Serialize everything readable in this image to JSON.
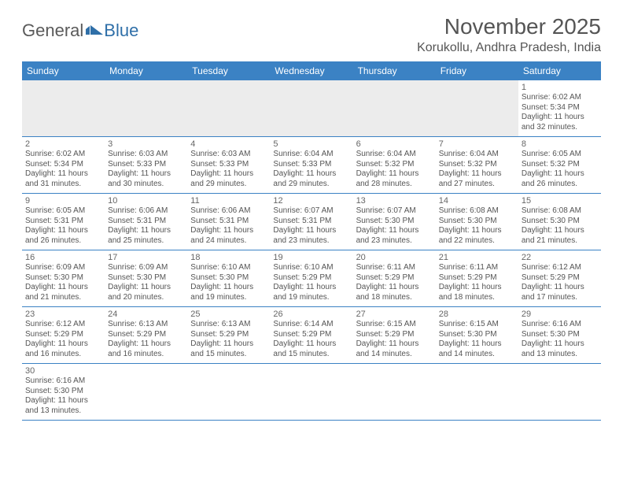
{
  "brand": {
    "part1": "General",
    "part2": "Blue"
  },
  "title": "November 2025",
  "location": "Korukollu, Andhra Pradesh, India",
  "day_labels": [
    "Sunday",
    "Monday",
    "Tuesday",
    "Wednesday",
    "Thursday",
    "Friday",
    "Saturday"
  ],
  "colors": {
    "header_bg": "#3b82c4",
    "header_text": "#ffffff",
    "border": "#3b82c4",
    "empty_bg": "#ececec",
    "text": "#555555"
  },
  "weeks": [
    [
      null,
      null,
      null,
      null,
      null,
      null,
      {
        "n": "1",
        "sr": "6:02 AM",
        "ss": "5:34 PM",
        "dl": "11 hours and 32 minutes."
      }
    ],
    [
      {
        "n": "2",
        "sr": "6:02 AM",
        "ss": "5:34 PM",
        "dl": "11 hours and 31 minutes."
      },
      {
        "n": "3",
        "sr": "6:03 AM",
        "ss": "5:33 PM",
        "dl": "11 hours and 30 minutes."
      },
      {
        "n": "4",
        "sr": "6:03 AM",
        "ss": "5:33 PM",
        "dl": "11 hours and 29 minutes."
      },
      {
        "n": "5",
        "sr": "6:04 AM",
        "ss": "5:33 PM",
        "dl": "11 hours and 29 minutes."
      },
      {
        "n": "6",
        "sr": "6:04 AM",
        "ss": "5:32 PM",
        "dl": "11 hours and 28 minutes."
      },
      {
        "n": "7",
        "sr": "6:04 AM",
        "ss": "5:32 PM",
        "dl": "11 hours and 27 minutes."
      },
      {
        "n": "8",
        "sr": "6:05 AM",
        "ss": "5:32 PM",
        "dl": "11 hours and 26 minutes."
      }
    ],
    [
      {
        "n": "9",
        "sr": "6:05 AM",
        "ss": "5:31 PM",
        "dl": "11 hours and 26 minutes."
      },
      {
        "n": "10",
        "sr": "6:06 AM",
        "ss": "5:31 PM",
        "dl": "11 hours and 25 minutes."
      },
      {
        "n": "11",
        "sr": "6:06 AM",
        "ss": "5:31 PM",
        "dl": "11 hours and 24 minutes."
      },
      {
        "n": "12",
        "sr": "6:07 AM",
        "ss": "5:31 PM",
        "dl": "11 hours and 23 minutes."
      },
      {
        "n": "13",
        "sr": "6:07 AM",
        "ss": "5:30 PM",
        "dl": "11 hours and 23 minutes."
      },
      {
        "n": "14",
        "sr": "6:08 AM",
        "ss": "5:30 PM",
        "dl": "11 hours and 22 minutes."
      },
      {
        "n": "15",
        "sr": "6:08 AM",
        "ss": "5:30 PM",
        "dl": "11 hours and 21 minutes."
      }
    ],
    [
      {
        "n": "16",
        "sr": "6:09 AM",
        "ss": "5:30 PM",
        "dl": "11 hours and 21 minutes."
      },
      {
        "n": "17",
        "sr": "6:09 AM",
        "ss": "5:30 PM",
        "dl": "11 hours and 20 minutes."
      },
      {
        "n": "18",
        "sr": "6:10 AM",
        "ss": "5:30 PM",
        "dl": "11 hours and 19 minutes."
      },
      {
        "n": "19",
        "sr": "6:10 AM",
        "ss": "5:29 PM",
        "dl": "11 hours and 19 minutes."
      },
      {
        "n": "20",
        "sr": "6:11 AM",
        "ss": "5:29 PM",
        "dl": "11 hours and 18 minutes."
      },
      {
        "n": "21",
        "sr": "6:11 AM",
        "ss": "5:29 PM",
        "dl": "11 hours and 18 minutes."
      },
      {
        "n": "22",
        "sr": "6:12 AM",
        "ss": "5:29 PM",
        "dl": "11 hours and 17 minutes."
      }
    ],
    [
      {
        "n": "23",
        "sr": "6:12 AM",
        "ss": "5:29 PM",
        "dl": "11 hours and 16 minutes."
      },
      {
        "n": "24",
        "sr": "6:13 AM",
        "ss": "5:29 PM",
        "dl": "11 hours and 16 minutes."
      },
      {
        "n": "25",
        "sr": "6:13 AM",
        "ss": "5:29 PM",
        "dl": "11 hours and 15 minutes."
      },
      {
        "n": "26",
        "sr": "6:14 AM",
        "ss": "5:29 PM",
        "dl": "11 hours and 15 minutes."
      },
      {
        "n": "27",
        "sr": "6:15 AM",
        "ss": "5:29 PM",
        "dl": "11 hours and 14 minutes."
      },
      {
        "n": "28",
        "sr": "6:15 AM",
        "ss": "5:30 PM",
        "dl": "11 hours and 14 minutes."
      },
      {
        "n": "29",
        "sr": "6:16 AM",
        "ss": "5:30 PM",
        "dl": "11 hours and 13 minutes."
      }
    ],
    [
      {
        "n": "30",
        "sr": "6:16 AM",
        "ss": "5:30 PM",
        "dl": "11 hours and 13 minutes."
      },
      null,
      null,
      null,
      null,
      null,
      null
    ]
  ],
  "labels": {
    "sunrise": "Sunrise: ",
    "sunset": "Sunset: ",
    "daylight": "Daylight: "
  }
}
